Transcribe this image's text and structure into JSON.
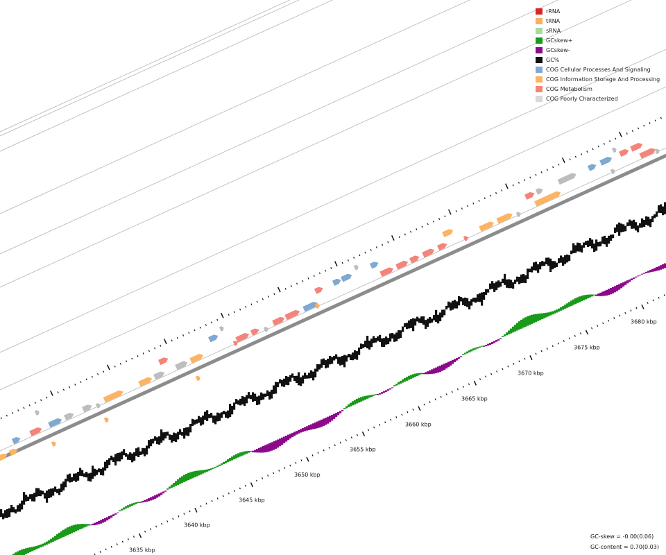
{
  "legend": [
    {
      "label": "rRNA",
      "color": "#d62728"
    },
    {
      "label": "tRNA",
      "color": "#fdae61"
    },
    {
      "label": "sRNA",
      "color": "#a6dba0"
    },
    {
      "label": "GCskew+",
      "color": "#1a9a1a"
    },
    {
      "label": "GCskew-",
      "color": "#8b0a8b"
    },
    {
      "label": "GC%",
      "color": "#111111"
    },
    {
      "label": "COG Cellular Processes And Signaling",
      "color": "#7fa9d1"
    },
    {
      "label": "COG Information Storage And Processing",
      "color": "#fdb462"
    },
    {
      "label": "COG Metabolism",
      "color": "#f4847a"
    },
    {
      "label": "COG Poorly Characterized",
      "color": "#d9d9d9"
    }
  ],
  "axis": {
    "ticks": [
      "3635 kbp",
      "3640 kbp",
      "3645 kbp",
      "3650 kbp",
      "3655 kbp",
      "3660 kbp",
      "3665 kbp",
      "3670 kbp",
      "3675 kbp",
      "3680 kbp"
    ]
  },
  "stats": {
    "gc_skew": "GC-skew = -0.00(0.06)",
    "gc_content": "GC-content = 0.70(0.03)"
  },
  "colors": {
    "backbone": "#8c8c8c",
    "ring_line": "#b5b5b5",
    "gc": "#111111",
    "skew_pos": "#1a9a1a",
    "skew_neg": "#8b0a8b",
    "gray_feature": "#bdbdbd"
  }
}
